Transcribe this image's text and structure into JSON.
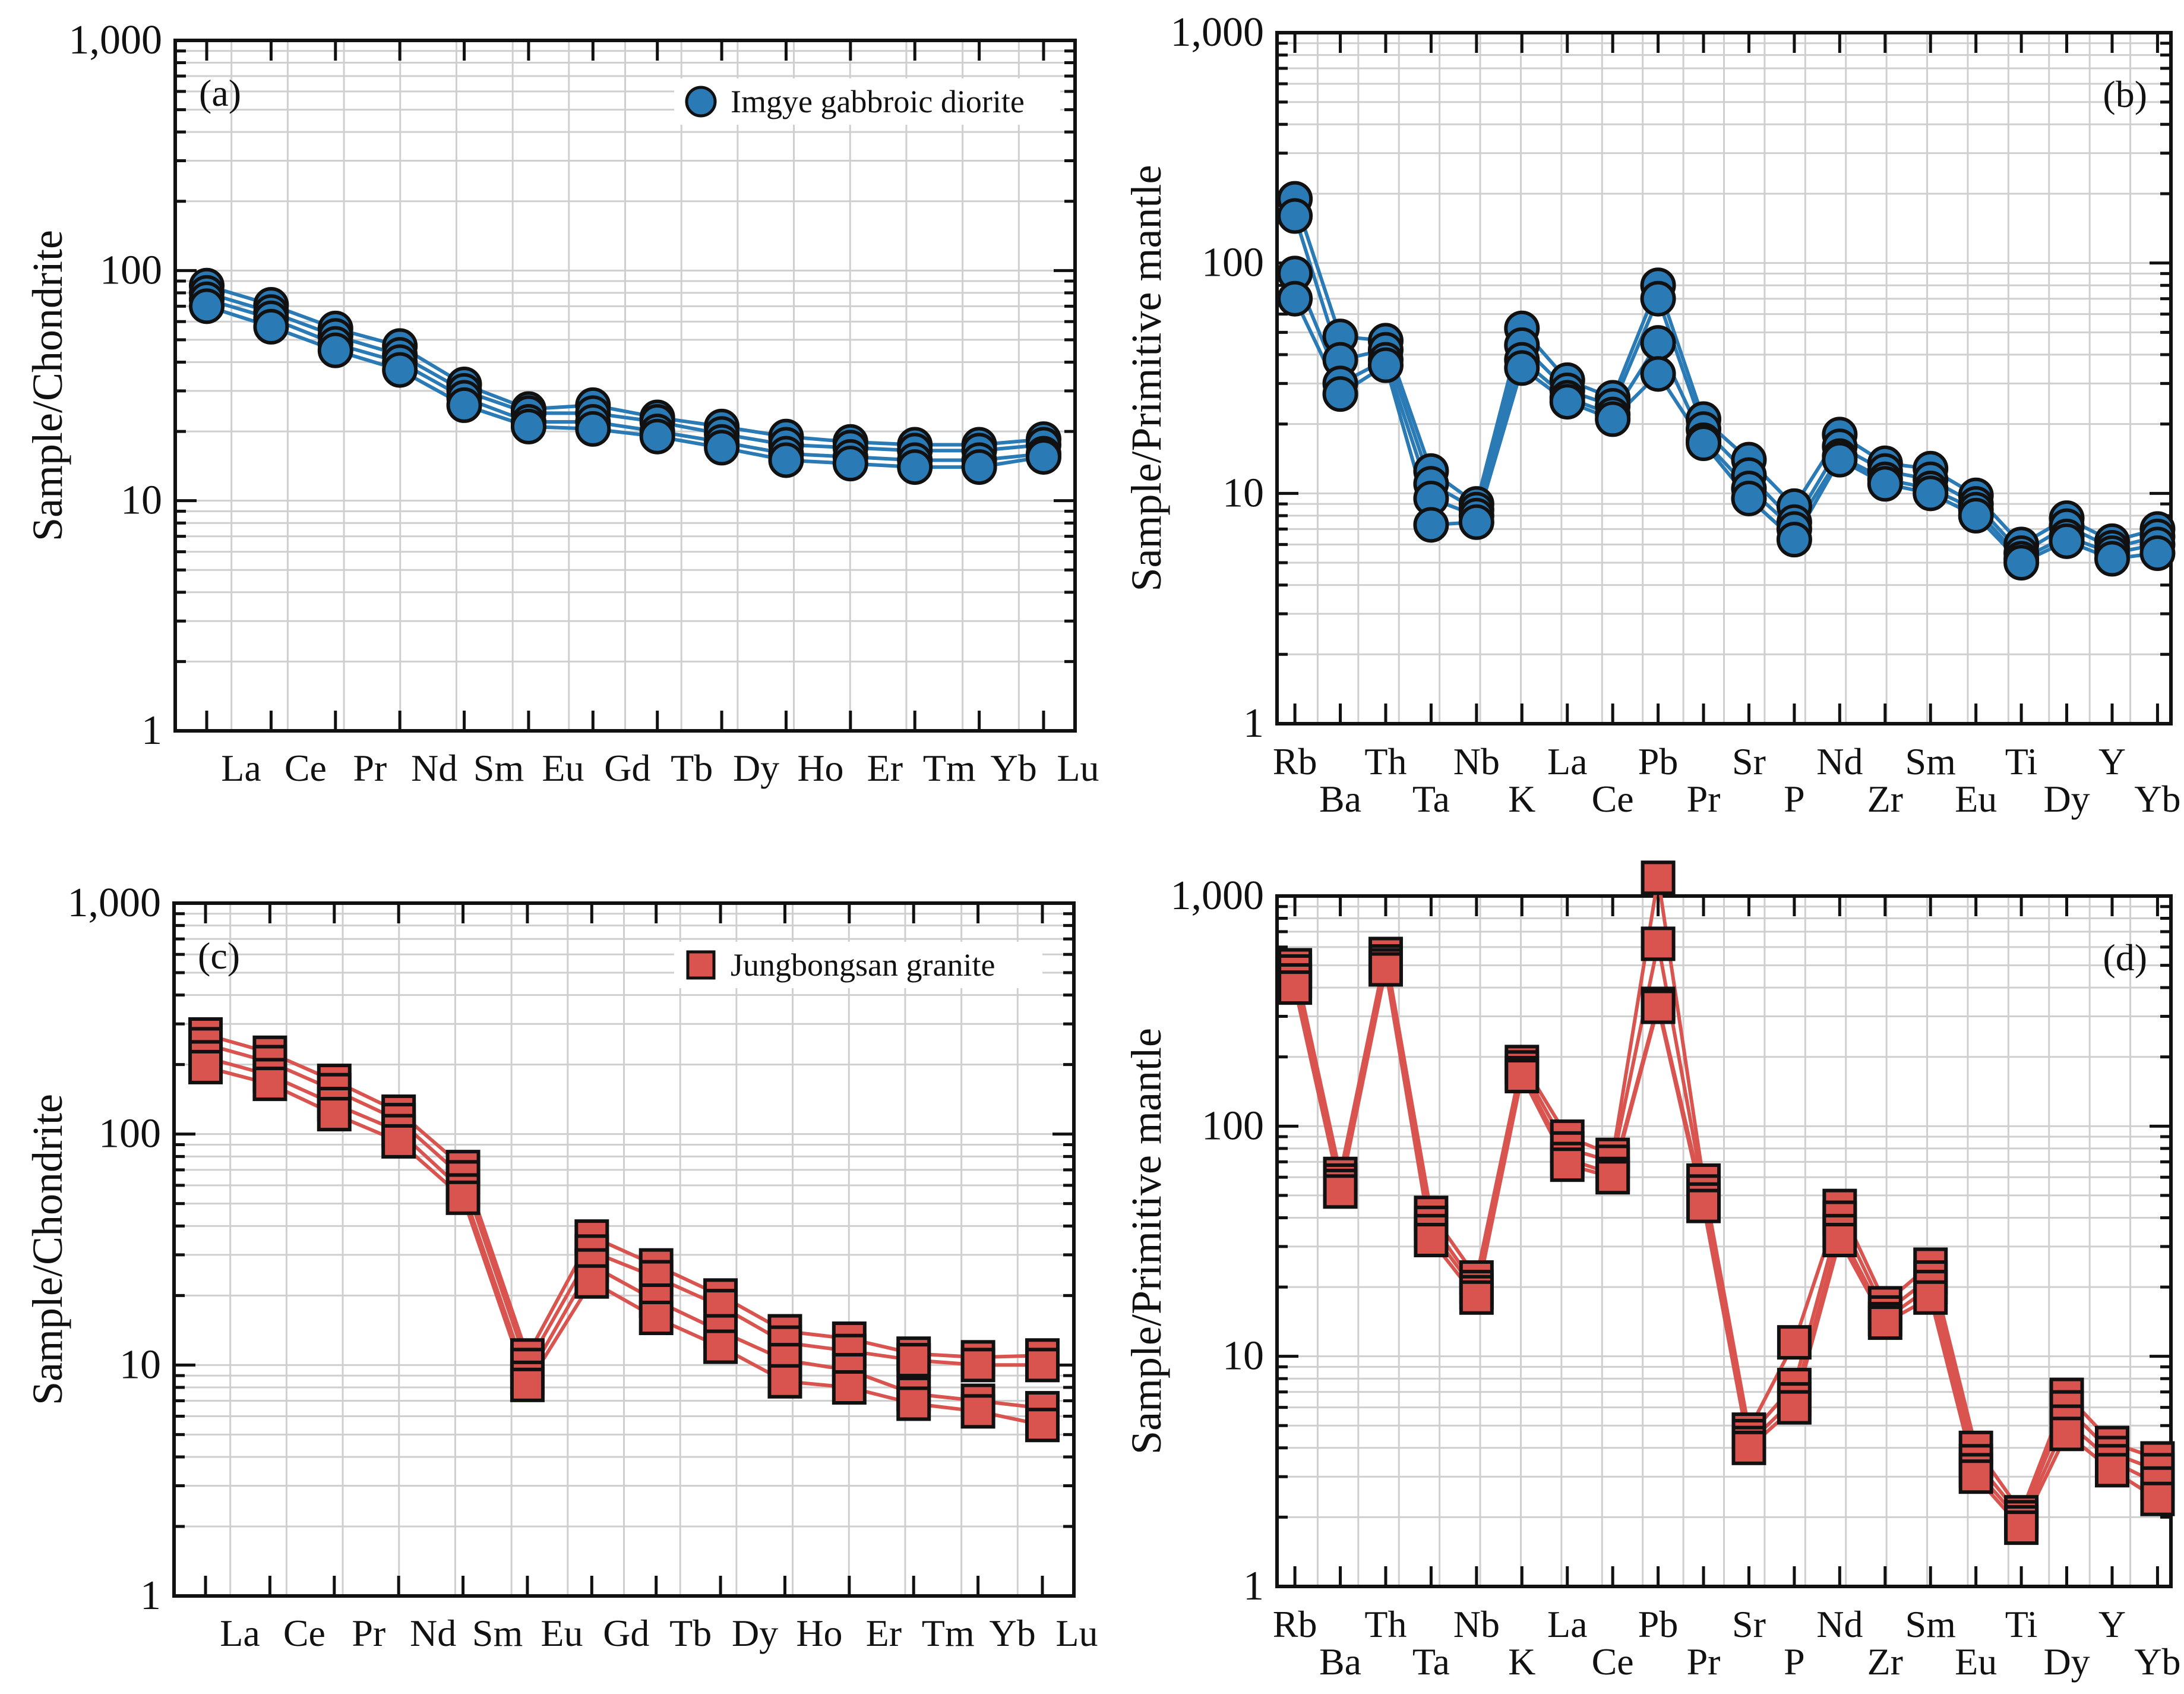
{
  "chart_data": [
    {
      "type": "line",
      "panel_label": "(a)",
      "legend": {
        "label": "Imgye gabbroic diorite",
        "marker": "circle",
        "position": "top-right"
      },
      "color": "#2a7ab5",
      "ylabel": "Sample/Chondrite",
      "yscale": "log",
      "ylim": [
        1,
        1000
      ],
      "ytick_labels": [
        "1",
        "10",
        "100",
        "1,000"
      ],
      "categories": [
        "La",
        "Ce",
        "Pr",
        "Nd",
        "Sm",
        "Eu",
        "Gd",
        "Tb",
        "Dy",
        "Ho",
        "Er",
        "Tm",
        "Yb",
        "Lu"
      ],
      "grid": true,
      "series": [
        {
          "name": "s1",
          "values": [
            86,
            71,
            56,
            47,
            32,
            25,
            26,
            23,
            21,
            19,
            18,
            17.5,
            17.5,
            18.5
          ]
        },
        {
          "name": "s2",
          "values": [
            80,
            66,
            52,
            43,
            30,
            24,
            24,
            22,
            19.5,
            17.5,
            17,
            16.5,
            16.5,
            17.5
          ]
        },
        {
          "name": "s3",
          "values": [
            75,
            62,
            48,
            40,
            28,
            22,
            22,
            20,
            18,
            16,
            15.5,
            15,
            15,
            16
          ]
        },
        {
          "name": "s4",
          "values": [
            70,
            57,
            45,
            37,
            26,
            21,
            20.5,
            19,
            17,
            15,
            14.5,
            14,
            14,
            15.5
          ]
        }
      ]
    },
    {
      "type": "line",
      "panel_label": "(b)",
      "color": "#2a7ab5",
      "ylabel": "Sample/Primitive mantle",
      "yscale": "log",
      "ylim": [
        1,
        1000
      ],
      "ytick_labels": [
        "1",
        "10",
        "100",
        "1,000"
      ],
      "categories": [
        "Rb",
        "Ba",
        "Th",
        "Ta",
        "Nb",
        "K",
        "La",
        "Ce",
        "Pb",
        "Pr",
        "Sr",
        "P",
        "Nd",
        "Zr",
        "Sm",
        "Eu",
        "Ti",
        "Dy",
        "Y",
        "Yb"
      ],
      "grid": true,
      "series": [
        {
          "name": "s1",
          "values": [
            190,
            48,
            46,
            12.5,
            9,
            52,
            31,
            26,
            80,
            21,
            14,
            8.8,
            18,
            13.5,
            12.8,
            9.8,
            6,
            7.8,
            6.2,
            7
          ]
        },
        {
          "name": "s2",
          "values": [
            160,
            38,
            42,
            11,
            8.5,
            44,
            28,
            24,
            70,
            19,
            12,
            7.5,
            16,
            12.5,
            11.5,
            9,
            5.5,
            7.2,
            5.8,
            6.5
          ]
        },
        {
          "name": "s3",
          "values": [
            90,
            30,
            38,
            9.5,
            8,
            38,
            26,
            22,
            45,
            17,
            10.5,
            7,
            14.5,
            11.5,
            10.5,
            8.5,
            5.2,
            6.5,
            5.5,
            6
          ]
        },
        {
          "name": "s4",
          "values": [
            70,
            27,
            36,
            7.3,
            7.5,
            35,
            25,
            21,
            33,
            16.5,
            9.5,
            6.3,
            14,
            11,
            10,
            8,
            5,
            6.2,
            5.2,
            5.5
          ]
        }
      ]
    },
    {
      "type": "line",
      "panel_label": "(c)",
      "legend": {
        "label": "Jungbongsan granite",
        "marker": "square",
        "position": "top-right"
      },
      "color": "#d9534f",
      "ylabel": "Sample/Chondrite",
      "yscale": "log",
      "ylim": [
        1,
        1000
      ],
      "ytick_labels": [
        "1",
        "10",
        "100",
        "1,000"
      ],
      "categories": [
        "La",
        "Ce",
        "Pr",
        "Nd",
        "Sm",
        "Eu",
        "Gd",
        "Tb",
        "Dy",
        "Ho",
        "Er",
        "Tm",
        "Yb",
        "Lu"
      ],
      "grid": true,
      "series": [
        {
          "name": "s1",
          "values": [
            270,
            225,
            170,
            125,
            72,
            11,
            36,
            27,
            20,
            14,
            13,
            11.2,
            10.8,
            11
          ]
        },
        {
          "name": "s2",
          "values": [
            245,
            205,
            155,
            115,
            65,
            10,
            31,
            24,
            18,
            12.5,
            11.5,
            10.5,
            10,
            10
          ]
        },
        {
          "name": "s3",
          "values": [
            215,
            180,
            135,
            103,
            57,
            8.8,
            27,
            19,
            14,
            10.5,
            9.5,
            7.5,
            7,
            6.5
          ]
        },
        {
          "name": "s4",
          "values": [
            195,
            165,
            122,
            93,
            53,
            8.2,
            23,
            16,
            12,
            8.5,
            8,
            6.8,
            6.3,
            5.5
          ]
        }
      ]
    },
    {
      "type": "line",
      "panel_label": "(d)",
      "color": "#d9534f",
      "ylabel": "Sample/Primitive mantle",
      "yscale": "log",
      "ylim": [
        1,
        1000
      ],
      "ytick_labels": [
        "1",
        "10",
        "100",
        "1,000"
      ],
      "categories": [
        "Rb",
        "Ba",
        "Th",
        "Ta",
        "Nb",
        "K",
        "La",
        "Ce",
        "Pb",
        "Pr",
        "Sr",
        "P",
        "Nd",
        "Zr",
        "Sm",
        "Eu",
        "Ti",
        "Dy",
        "Y",
        "Yb"
      ],
      "grid": true,
      "series": [
        {
          "name": "s1",
          "values": [
            500,
            62,
            560,
            42,
            22,
            190,
            90,
            75,
            1200,
            58,
            4.8,
            11.5,
            45,
            17,
            25,
            4,
            2.1,
            6.8,
            4.2,
            3.6
          ]
        },
        {
          "name": "s2",
          "values": [
            470,
            58,
            520,
            38,
            20,
            180,
            80,
            70,
            620,
            52,
            4.5,
            7.5,
            40,
            15.5,
            22,
            3.5,
            2,
            6,
            3.8,
            3.2
          ]
        },
        {
          "name": "s3",
          "values": [
            430,
            55,
            500,
            35,
            19,
            170,
            72,
            62,
            340,
            48,
            4.2,
            6.5,
            35,
            14.5,
            20,
            3.2,
            1.9,
            5.2,
            3.5,
            2.8
          ]
        },
        {
          "name": "s4",
          "values": [
            400,
            52,
            480,
            32,
            18,
            165,
            68,
            60,
            330,
            45,
            4,
            6,
            32,
            14,
            18,
            3,
            1.8,
            4.6,
            3.2,
            2.4
          ]
        }
      ]
    }
  ]
}
